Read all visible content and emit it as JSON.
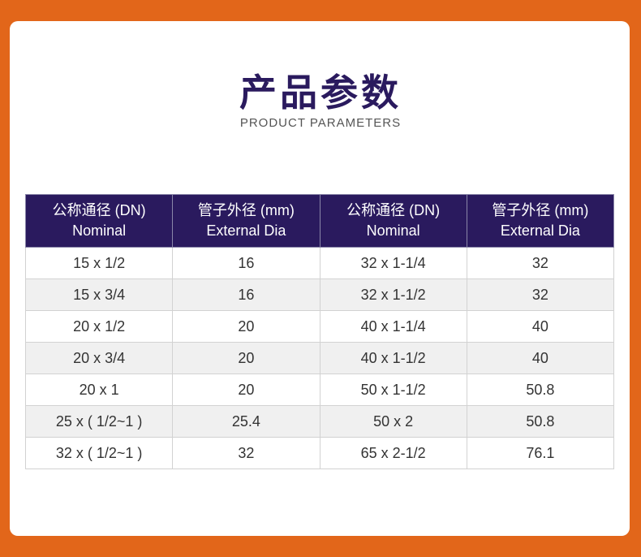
{
  "page": {
    "title": "产品参数",
    "subtitle": "PRODUCT PARAMETERS"
  },
  "table": {
    "headers": [
      {
        "line1": "公称通径 (DN)",
        "line2": "Nominal"
      },
      {
        "line1": "管子外径 (mm)",
        "line2": "External Dia"
      },
      {
        "line1": "公称通径 (DN)",
        "line2": "Nominal"
      },
      {
        "line1": "管子外径 (mm)",
        "line2": "External Dia"
      }
    ],
    "rows": [
      [
        "15 x 1/2",
        "16",
        "32 x 1-1/4",
        "32"
      ],
      [
        "15 x 3/4",
        "16",
        "32 x 1-1/2",
        "32"
      ],
      [
        "20 x 1/2",
        "20",
        "40 x 1-1/4",
        "40"
      ],
      [
        "20 x 3/4",
        "20",
        "40 x 1-1/2",
        "40"
      ],
      [
        "20 x 1",
        "20",
        "50 x 1-1/2",
        "50.8"
      ],
      [
        "25 x ( 1/2~1 )",
        "25.4",
        "50 x 2",
        "50.8"
      ],
      [
        "32 x ( 1/2~1 )",
        "32",
        "65 x 2-1/2",
        "76.1"
      ]
    ]
  },
  "colors": {
    "background": "#e2661a",
    "header": "#2a1a5e",
    "stripe": "#f0f0f0"
  }
}
